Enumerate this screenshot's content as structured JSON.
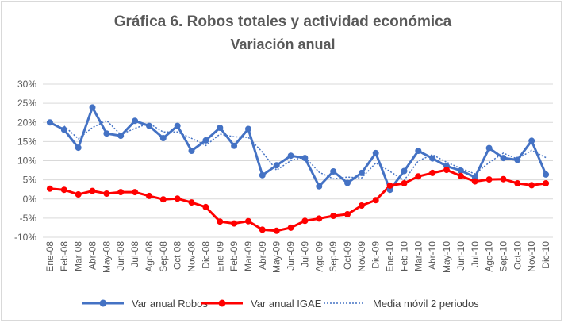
{
  "chart_data": {
    "type": "line",
    "title": "Gráfica 6. Robos totales y actividad económica",
    "subtitle": "Variación anual",
    "categories": [
      "Ene-08",
      "Feb-08",
      "Mar-08",
      "Abr-08",
      "May-08",
      "Jun-08",
      "Jul-08",
      "Ago-08",
      "Sep-08",
      "Oct-08",
      "Nov-08",
      "Dic-08",
      "Ene-09",
      "Feb-09",
      "Mar-09",
      "Abr-09",
      "May-09",
      "Jun-09",
      "Jul-09",
      "Ago-09",
      "Sep-09",
      "Oct-09",
      "Nov-09",
      "Dic-09",
      "Ene-10",
      "Feb-10",
      "Mar-10",
      "Abr-10",
      "May-10",
      "Jun-10",
      "Jul-10",
      "Ago-10",
      "Sep-10",
      "Oct-10",
      "Nov-10",
      "Dic-10"
    ],
    "yticks": [
      "30%",
      "25%",
      "20%",
      "15%",
      "10%",
      "5%",
      "0%",
      "-5%",
      "-10%"
    ],
    "ylim": [
      -10,
      30
    ],
    "ystep": 5,
    "series": [
      {
        "name": "Var anual Robos",
        "color": "#4472c4",
        "values": [
          20.0,
          18.1,
          13.4,
          23.9,
          17.1,
          16.5,
          20.4,
          19.1,
          15.9,
          19.1,
          12.6,
          15.3,
          18.6,
          13.9,
          18.3,
          6.2,
          8.8,
          11.3,
          10.7,
          3.3,
          7.2,
          4.2,
          6.8,
          12.0,
          2.4,
          7.3,
          12.6,
          10.6,
          8.6,
          7.4,
          5.7,
          13.3,
          10.7,
          10.2,
          15.2,
          6.4
        ]
      },
      {
        "name": "Var anual IGAE",
        "color": "#ff0000",
        "values": [
          2.7,
          2.4,
          1.2,
          2.1,
          1.4,
          1.8,
          1.8,
          0.8,
          -0.1,
          0.1,
          -0.9,
          -2.1,
          -5.9,
          -6.4,
          -5.8,
          -8.0,
          -8.3,
          -7.5,
          -5.7,
          -5.1,
          -4.4,
          -4.0,
          -1.7,
          -0.3,
          3.5,
          4.1,
          5.9,
          6.8,
          7.6,
          6.0,
          4.6,
          5.1,
          5.2,
          4.1,
          3.6,
          4.1
        ]
      }
    ],
    "trendline": {
      "name": "Media móvil 2 periodos",
      "color": "#4472c4",
      "of_series": "Var anual Robos"
    }
  }
}
